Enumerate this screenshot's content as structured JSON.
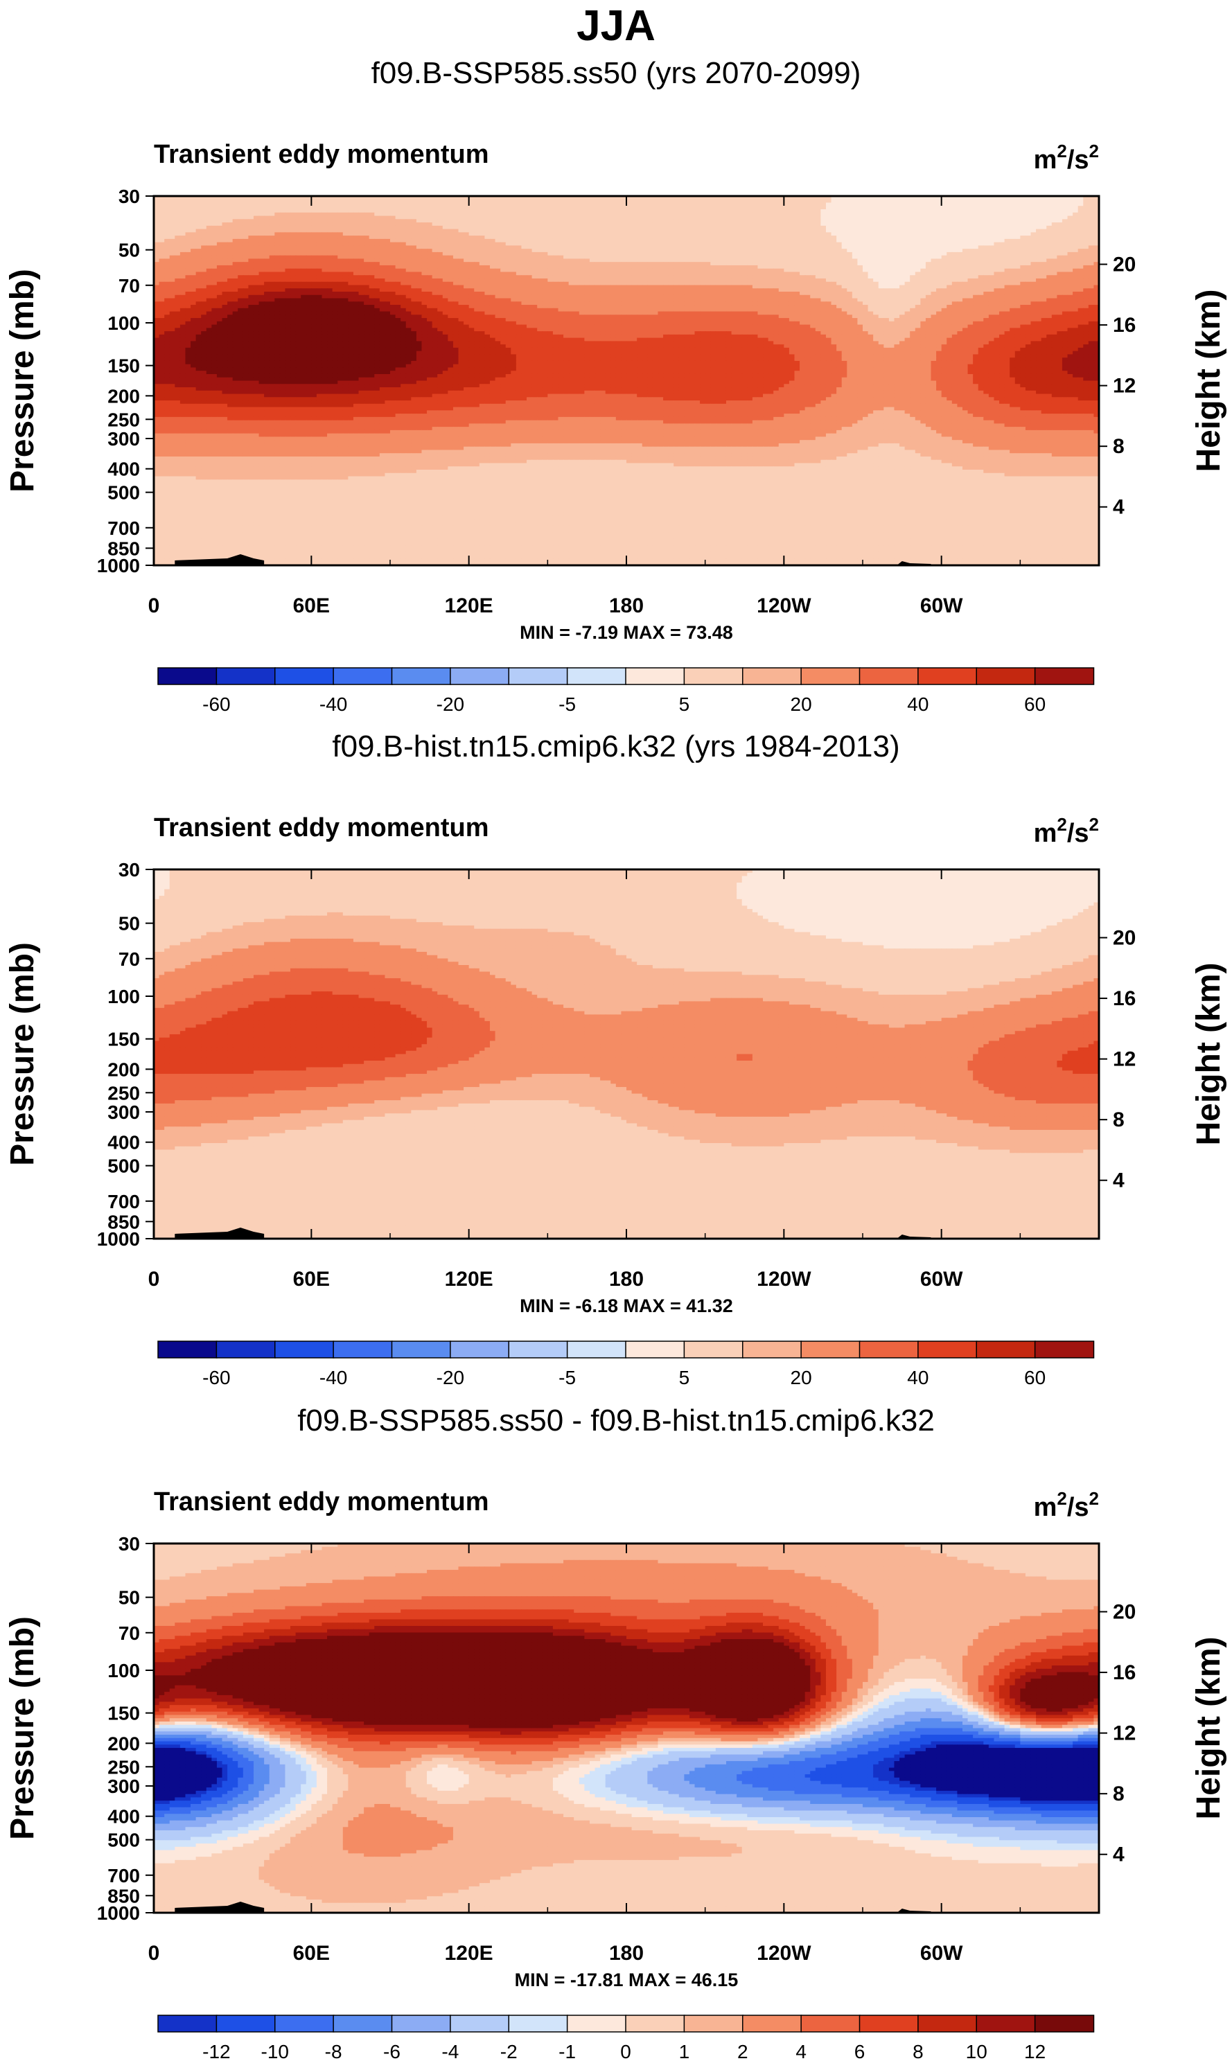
{
  "chart_data": {
    "type": "heatmap",
    "title": "JJA",
    "colors": {
      "full": [
        "#0a0a8c",
        "#1432c8",
        "#1e50e6",
        "#3c6ef0",
        "#5a8cf0",
        "#8cacf4",
        "#b4ccf8",
        "#d2e4fa",
        "#fde8dc",
        "#fad0b8",
        "#f8b494",
        "#f48c64",
        "#ec6440",
        "#e04020",
        "#c42810",
        "#a01410",
        "#780a0a"
      ]
    },
    "panels": [
      {
        "title": "f09.B-SSP585.ss50 (yrs 2070-2099)",
        "left_label": "Transient eddy momentum",
        "units_base": "m",
        "units_exp": "2",
        "units_mid": "/s",
        "ylabel": "Pressure (mb)",
        "y2label": "Height (km)",
        "xticks": [
          "0",
          "60E",
          "120E",
          "180",
          "120W",
          "60W"
        ],
        "xtick_values": [
          0,
          60,
          120,
          180,
          240,
          300
        ],
        "pressure_levels": [
          "30",
          "50",
          "70",
          "100",
          "150",
          "200",
          "250",
          "300",
          "400",
          "500",
          "700",
          "850",
          "1000"
        ],
        "pressure_values": [
          30,
          50,
          70,
          100,
          150,
          200,
          250,
          300,
          400,
          500,
          700,
          850,
          1000
        ],
        "height_ticks": [
          "20",
          "16",
          "12",
          "8",
          "4"
        ],
        "height_values": [
          20,
          16,
          12,
          8,
          4
        ],
        "stats": "MIN = -7.19  MAX = 73.48",
        "colorbar_labels": [
          "-60",
          "-40",
          "-20",
          "-5",
          "5",
          "20",
          "40",
          "60"
        ],
        "blobs": [
          {
            "lon": 55,
            "p": 120,
            "rlon": 45,
            "rp": 0.55,
            "amp": 40
          },
          {
            "lon": 62,
            "p": 100,
            "rlon": 25,
            "rp": 0.25,
            "amp": 30
          },
          {
            "lon": 20,
            "p": 150,
            "rlon": 40,
            "rp": 0.4,
            "amp": 22
          },
          {
            "lon": 110,
            "p": 140,
            "rlon": 50,
            "rp": 0.4,
            "amp": 20
          },
          {
            "lon": 225,
            "p": 150,
            "rlon": 35,
            "rp": 0.45,
            "amp": 28
          },
          {
            "lon": 330,
            "p": 160,
            "rlon": 28,
            "rp": 0.45,
            "amp": 24
          },
          {
            "lon": 155,
            "p": 170,
            "rlon": 55,
            "rp": 0.5,
            "amp": 14
          },
          {
            "lon": 280,
            "p": 110,
            "rlon": 10,
            "rp": 0.6,
            "amp": -6
          },
          {
            "lon": 320,
            "p": 40,
            "rlon": 60,
            "rp": 0.45,
            "amp": -4
          },
          {
            "lon": 160,
            "p": 400,
            "rlon": 50,
            "rp": 0.3,
            "amp": -3
          },
          {
            "lon": 50,
            "p": 60,
            "rlon": 30,
            "rp": 0.3,
            "amp": 4
          }
        ]
      },
      {
        "title": "f09.B-hist.tn15.cmip6.k32 (yrs 1984-2013)",
        "left_label": "Transient eddy momentum",
        "units_base": "m",
        "units_exp": "2",
        "units_mid": "/s",
        "ylabel": "Pressure (mb)",
        "y2label": "Height (km)",
        "xticks": [
          "0",
          "60E",
          "120E",
          "180",
          "120W",
          "60W"
        ],
        "xtick_values": [
          0,
          60,
          120,
          180,
          240,
          300
        ],
        "pressure_levels": [
          "30",
          "50",
          "70",
          "100",
          "150",
          "200",
          "250",
          "300",
          "400",
          "500",
          "700",
          "850",
          "1000"
        ],
        "pressure_values": [
          30,
          50,
          70,
          100,
          150,
          200,
          250,
          300,
          400,
          500,
          700,
          850,
          1000
        ],
        "height_ticks": [
          "20",
          "16",
          "12",
          "8",
          "4"
        ],
        "height_values": [
          20,
          16,
          12,
          8,
          4
        ],
        "stats": "MIN = -6.18  MAX = 41.32",
        "colorbar_labels": [
          "-60",
          "-40",
          "-20",
          "-5",
          "5",
          "20",
          "40",
          "60"
        ],
        "blobs": [
          {
            "lon": 60,
            "p": 120,
            "rlon": 40,
            "rp": 0.5,
            "amp": 24
          },
          {
            "lon": 100,
            "p": 150,
            "rlon": 40,
            "rp": 0.35,
            "amp": 16
          },
          {
            "lon": 15,
            "p": 190,
            "rlon": 35,
            "rp": 0.4,
            "amp": 16
          },
          {
            "lon": 225,
            "p": 180,
            "rlon": 40,
            "rp": 0.45,
            "amp": 18
          },
          {
            "lon": 330,
            "p": 200,
            "rlon": 30,
            "rp": 0.4,
            "amp": 16
          },
          {
            "lon": 300,
            "p": 40,
            "rlon": 70,
            "rp": 0.5,
            "amp": -4
          },
          {
            "lon": 100,
            "p": 350,
            "rlon": 60,
            "rp": 0.35,
            "amp": -3
          },
          {
            "lon": 160,
            "p": 60,
            "rlon": 30,
            "rp": 0.3,
            "amp": 3
          }
        ]
      },
      {
        "title": "f09.B-SSP585.ss50 - f09.B-hist.tn15.cmip6.k32",
        "left_label": "Transient eddy momentum",
        "units_base": "m",
        "units_exp": "2",
        "units_mid": "/s",
        "ylabel": "Pressure (mb)",
        "y2label": "Height (km)",
        "xticks": [
          "0",
          "60E",
          "120E",
          "180",
          "120W",
          "60W"
        ],
        "xtick_values": [
          0,
          60,
          120,
          180,
          240,
          300
        ],
        "pressure_levels": [
          "30",
          "50",
          "70",
          "100",
          "150",
          "200",
          "250",
          "300",
          "400",
          "500",
          "700",
          "850",
          "1000"
        ],
        "pressure_values": [
          30,
          50,
          70,
          100,
          150,
          200,
          250,
          300,
          400,
          500,
          700,
          850,
          1000
        ],
        "height_ticks": [
          "20",
          "16",
          "12",
          "8",
          "4"
        ],
        "height_values": [
          20,
          16,
          12,
          8,
          4
        ],
        "stats": "MIN = -17.81  MAX = 46.15",
        "colorbar_labels": [
          "-12",
          "-10",
          "-8",
          "-6",
          "-4",
          "-2",
          "-1",
          "0",
          "1",
          "2",
          "4",
          "6",
          "8",
          "10",
          "12"
        ],
        "blobs": [
          {
            "lon": 90,
            "p": 110,
            "rlon": 65,
            "rp": 0.35,
            "amp": 22
          },
          {
            "lon": 160,
            "p": 120,
            "rlon": 35,
            "rp": 0.35,
            "amp": 9
          },
          {
            "lon": 230,
            "p": 115,
            "rlon": 18,
            "rp": 0.35,
            "amp": 18
          },
          {
            "lon": 340,
            "p": 140,
            "rlon": 18,
            "rp": 0.25,
            "amp": 14
          },
          {
            "lon": 15,
            "p": 260,
            "rlon": 30,
            "rp": 0.35,
            "amp": -9
          },
          {
            "lon": 245,
            "p": 270,
            "rlon": 50,
            "rp": 0.3,
            "amp": -11
          },
          {
            "lon": 340,
            "p": 250,
            "rlon": 35,
            "rp": 0.35,
            "amp": -14
          },
          {
            "lon": 110,
            "p": 250,
            "rlon": 12,
            "rp": 0.25,
            "amp": -3
          },
          {
            "lon": 300,
            "p": 180,
            "rlon": 20,
            "rp": 0.5,
            "amp": -4
          },
          {
            "lon": 180,
            "p": 60,
            "rlon": 90,
            "rp": 0.5,
            "amp": 2.5
          },
          {
            "lon": 80,
            "p": 400,
            "rlon": 40,
            "rp": 0.5,
            "amp": 2
          },
          {
            "lon": 220,
            "p": 420,
            "rlon": 60,
            "rp": 0.25,
            "amp": 2
          }
        ]
      }
    ]
  }
}
